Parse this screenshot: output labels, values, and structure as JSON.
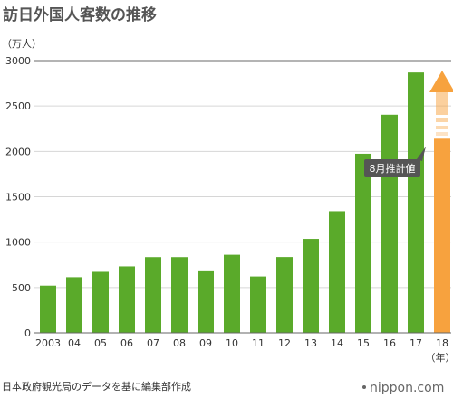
{
  "chart_data": {
    "type": "bar",
    "title": "訪日外国人客数の推移",
    "unit_label": "（万人）",
    "year_unit_label": "（年）",
    "categories": [
      "2003",
      "04",
      "05",
      "06",
      "07",
      "08",
      "09",
      "10",
      "11",
      "12",
      "13",
      "14",
      "15",
      "16",
      "17",
      "18"
    ],
    "series": [
      {
        "values": [
          521,
          614,
          673,
          733,
          835,
          835,
          679,
          861,
          622,
          836,
          1036,
          1341,
          1974,
          2404,
          2869,
          2140
        ],
        "colors": [
          "#5aaa2a",
          "#5aaa2a",
          "#5aaa2a",
          "#5aaa2a",
          "#5aaa2a",
          "#5aaa2a",
          "#5aaa2a",
          "#5aaa2a",
          "#5aaa2a",
          "#5aaa2a",
          "#5aaa2a",
          "#5aaa2a",
          "#5aaa2a",
          "#5aaa2a",
          "#5aaa2a",
          "#f7a23e"
        ]
      }
    ],
    "ylim": [
      0,
      3000
    ],
    "yticks": [
      0,
      500,
      1000,
      1500,
      2000,
      2500,
      3000
    ],
    "grid": "horizontal",
    "arrow_color": "#f7a23e",
    "annotation": {
      "text": "8月推計値",
      "color": "#555555"
    },
    "source": "日本政府観光局のデータを基に編集部作成",
    "brand": "nippon.com"
  }
}
